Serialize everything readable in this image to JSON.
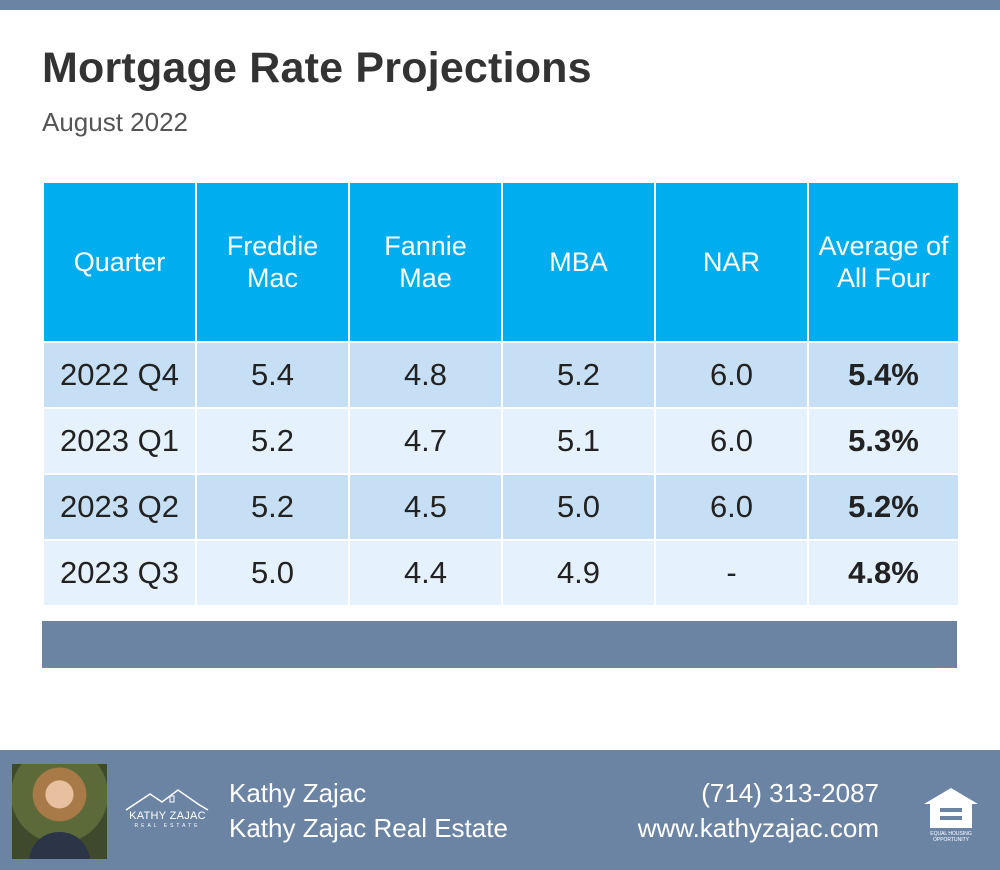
{
  "header": {
    "title": "Mortgage Rate Projections",
    "subtitle": "August 2022"
  },
  "table": {
    "columns": [
      "Quarter",
      "Freddie Mac",
      "Fannie Mae",
      "MBA",
      "NAR",
      "Average of All Four"
    ],
    "rows": [
      [
        "2022 Q4",
        "5.4",
        "4.8",
        "5.2",
        "6.0",
        "5.4%"
      ],
      [
        "2023 Q1",
        "5.2",
        "4.7",
        "5.1",
        "6.0",
        "5.3%"
      ],
      [
        "2023 Q2",
        "5.2",
        "4.5",
        "5.0",
        "6.0",
        "5.2%"
      ],
      [
        "2023 Q3",
        "5.0",
        "4.4",
        "4.9",
        "-",
        "4.8%"
      ]
    ]
  },
  "footer": {
    "logo_name": "KATHY ZAJAC",
    "logo_sub": "REAL ESTATE",
    "agent_name": "Kathy Zajac",
    "agency_name": "Kathy Zajac Real Estate",
    "phone": "(714) 313-2087",
    "website": "www.kathyzajac.com",
    "eho_line1": "EQUAL HOUSING",
    "eho_line2": "OPPORTUNITY"
  },
  "colors": {
    "header_blue": "#00adef",
    "row_dark": "#c6dff4",
    "row_light": "#e5f1fc",
    "slate": "#6b84a4"
  }
}
